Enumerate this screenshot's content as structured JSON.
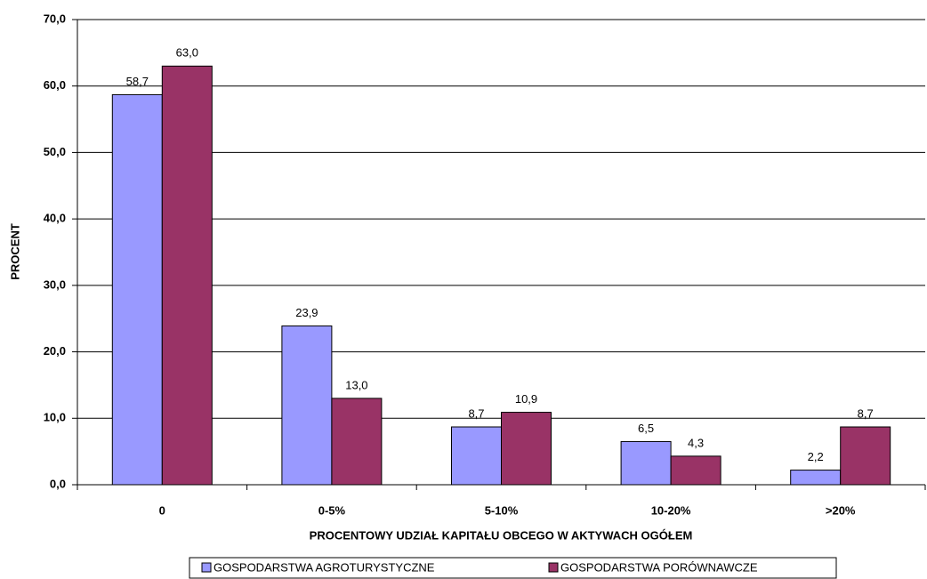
{
  "chart_data": {
    "type": "bar",
    "x_label": "PROCENTOWY UDZIAŁ KAPITAŁU OBCEGO W AKTYWACH OGÓŁEM",
    "y_label": "PROCENT",
    "categories": [
      "0",
      "0-5%",
      "5-10%",
      "10-20%",
      ">20%"
    ],
    "series": [
      {
        "name": "GOSPODARSTWA AGROTURYSTYCZNE",
        "color": "#9999ff",
        "values": [
          58.7,
          23.9,
          8.7,
          6.5,
          2.2
        ],
        "value_labels": [
          "58,7",
          "23,9",
          "8,7",
          "6,5",
          "2,2"
        ]
      },
      {
        "name": "GOSPODARSTWA PORÓWNAWCZE",
        "color": "#993366",
        "values": [
          63.0,
          13.0,
          10.9,
          4.3,
          8.7
        ],
        "value_labels": [
          "63,0",
          "13,0",
          "10,9",
          "4,3",
          "8,7"
        ]
      }
    ],
    "ylim": [
      0,
      70
    ],
    "yticks": [
      {
        "value": 0,
        "label": "0,0"
      },
      {
        "value": 10,
        "label": "10,0"
      },
      {
        "value": 20,
        "label": "20,0"
      },
      {
        "value": 30,
        "label": "30,0"
      },
      {
        "value": 40,
        "label": "40,0"
      },
      {
        "value": 50,
        "label": "50,0"
      },
      {
        "value": 60,
        "label": "60,0"
      },
      {
        "value": 70,
        "label": "70,0"
      }
    ],
    "grid": true,
    "legend": "bottom"
  }
}
